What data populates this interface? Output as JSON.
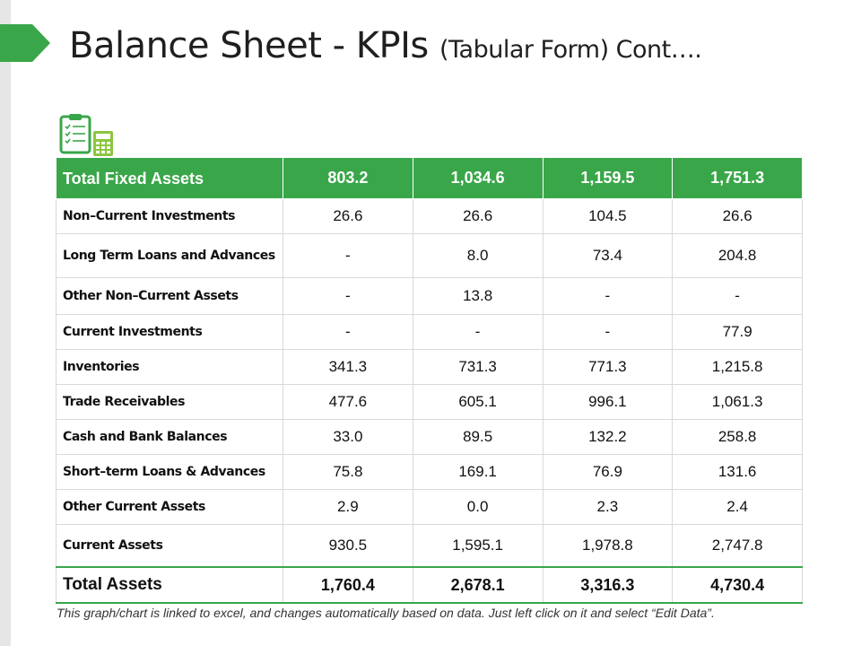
{
  "title": {
    "main": "Balance Sheet - KPIs",
    "sub": "(Tabular Form) Cont…."
  },
  "colors": {
    "accent": "#3aa64a",
    "header_text": "#ffffff"
  },
  "icon": "clipboard-calculator-icon",
  "table": {
    "header": {
      "label": "Total Fixed Assets",
      "values": [
        "803.2",
        "1,034.6",
        "1,159.5",
        "1,751.3"
      ]
    },
    "rows": [
      {
        "label": "Non–Current Investments",
        "values": [
          "26.6",
          "26.6",
          "104.5",
          "26.6"
        ]
      },
      {
        "label": "Long Term Loans and Advances",
        "values": [
          "-",
          "8.0",
          "73.4",
          "204.8"
        ]
      },
      {
        "label": "Other Non–Current Assets",
        "values": [
          "-",
          "13.8",
          "-",
          "-"
        ]
      },
      {
        "label": "Current Investments",
        "values": [
          "-",
          "-",
          "-",
          "77.9"
        ]
      },
      {
        "label": "Inventories",
        "values": [
          "341.3",
          "731.3",
          "771.3",
          "1,215.8"
        ]
      },
      {
        "label": "Trade Receivables",
        "values": [
          "477.6",
          "605.1",
          "996.1",
          "1,061.3"
        ]
      },
      {
        "label": "Cash and Bank Balances",
        "values": [
          "33.0",
          "89.5",
          "132.2",
          "258.8"
        ]
      },
      {
        "label": "Short–term Loans & Advances",
        "values": [
          "75.8",
          "169.1",
          "76.9",
          "131.6"
        ]
      },
      {
        "label": "Other Current Assets",
        "values": [
          "2.9",
          "0.0",
          "2.3",
          "2.4"
        ]
      },
      {
        "label": "Current Assets",
        "values": [
          "930.5",
          "1,595.1",
          "1,978.8",
          "2,747.8"
        ]
      }
    ],
    "total": {
      "label": "Total Assets",
      "values": [
        "1,760.4",
        "2,678.1",
        "3,316.3",
        "4,730.4"
      ]
    }
  },
  "footer": {
    "note": "This graph/chart is linked to excel, and changes automatically based on data. Just left click on it and select “Edit Data”."
  }
}
